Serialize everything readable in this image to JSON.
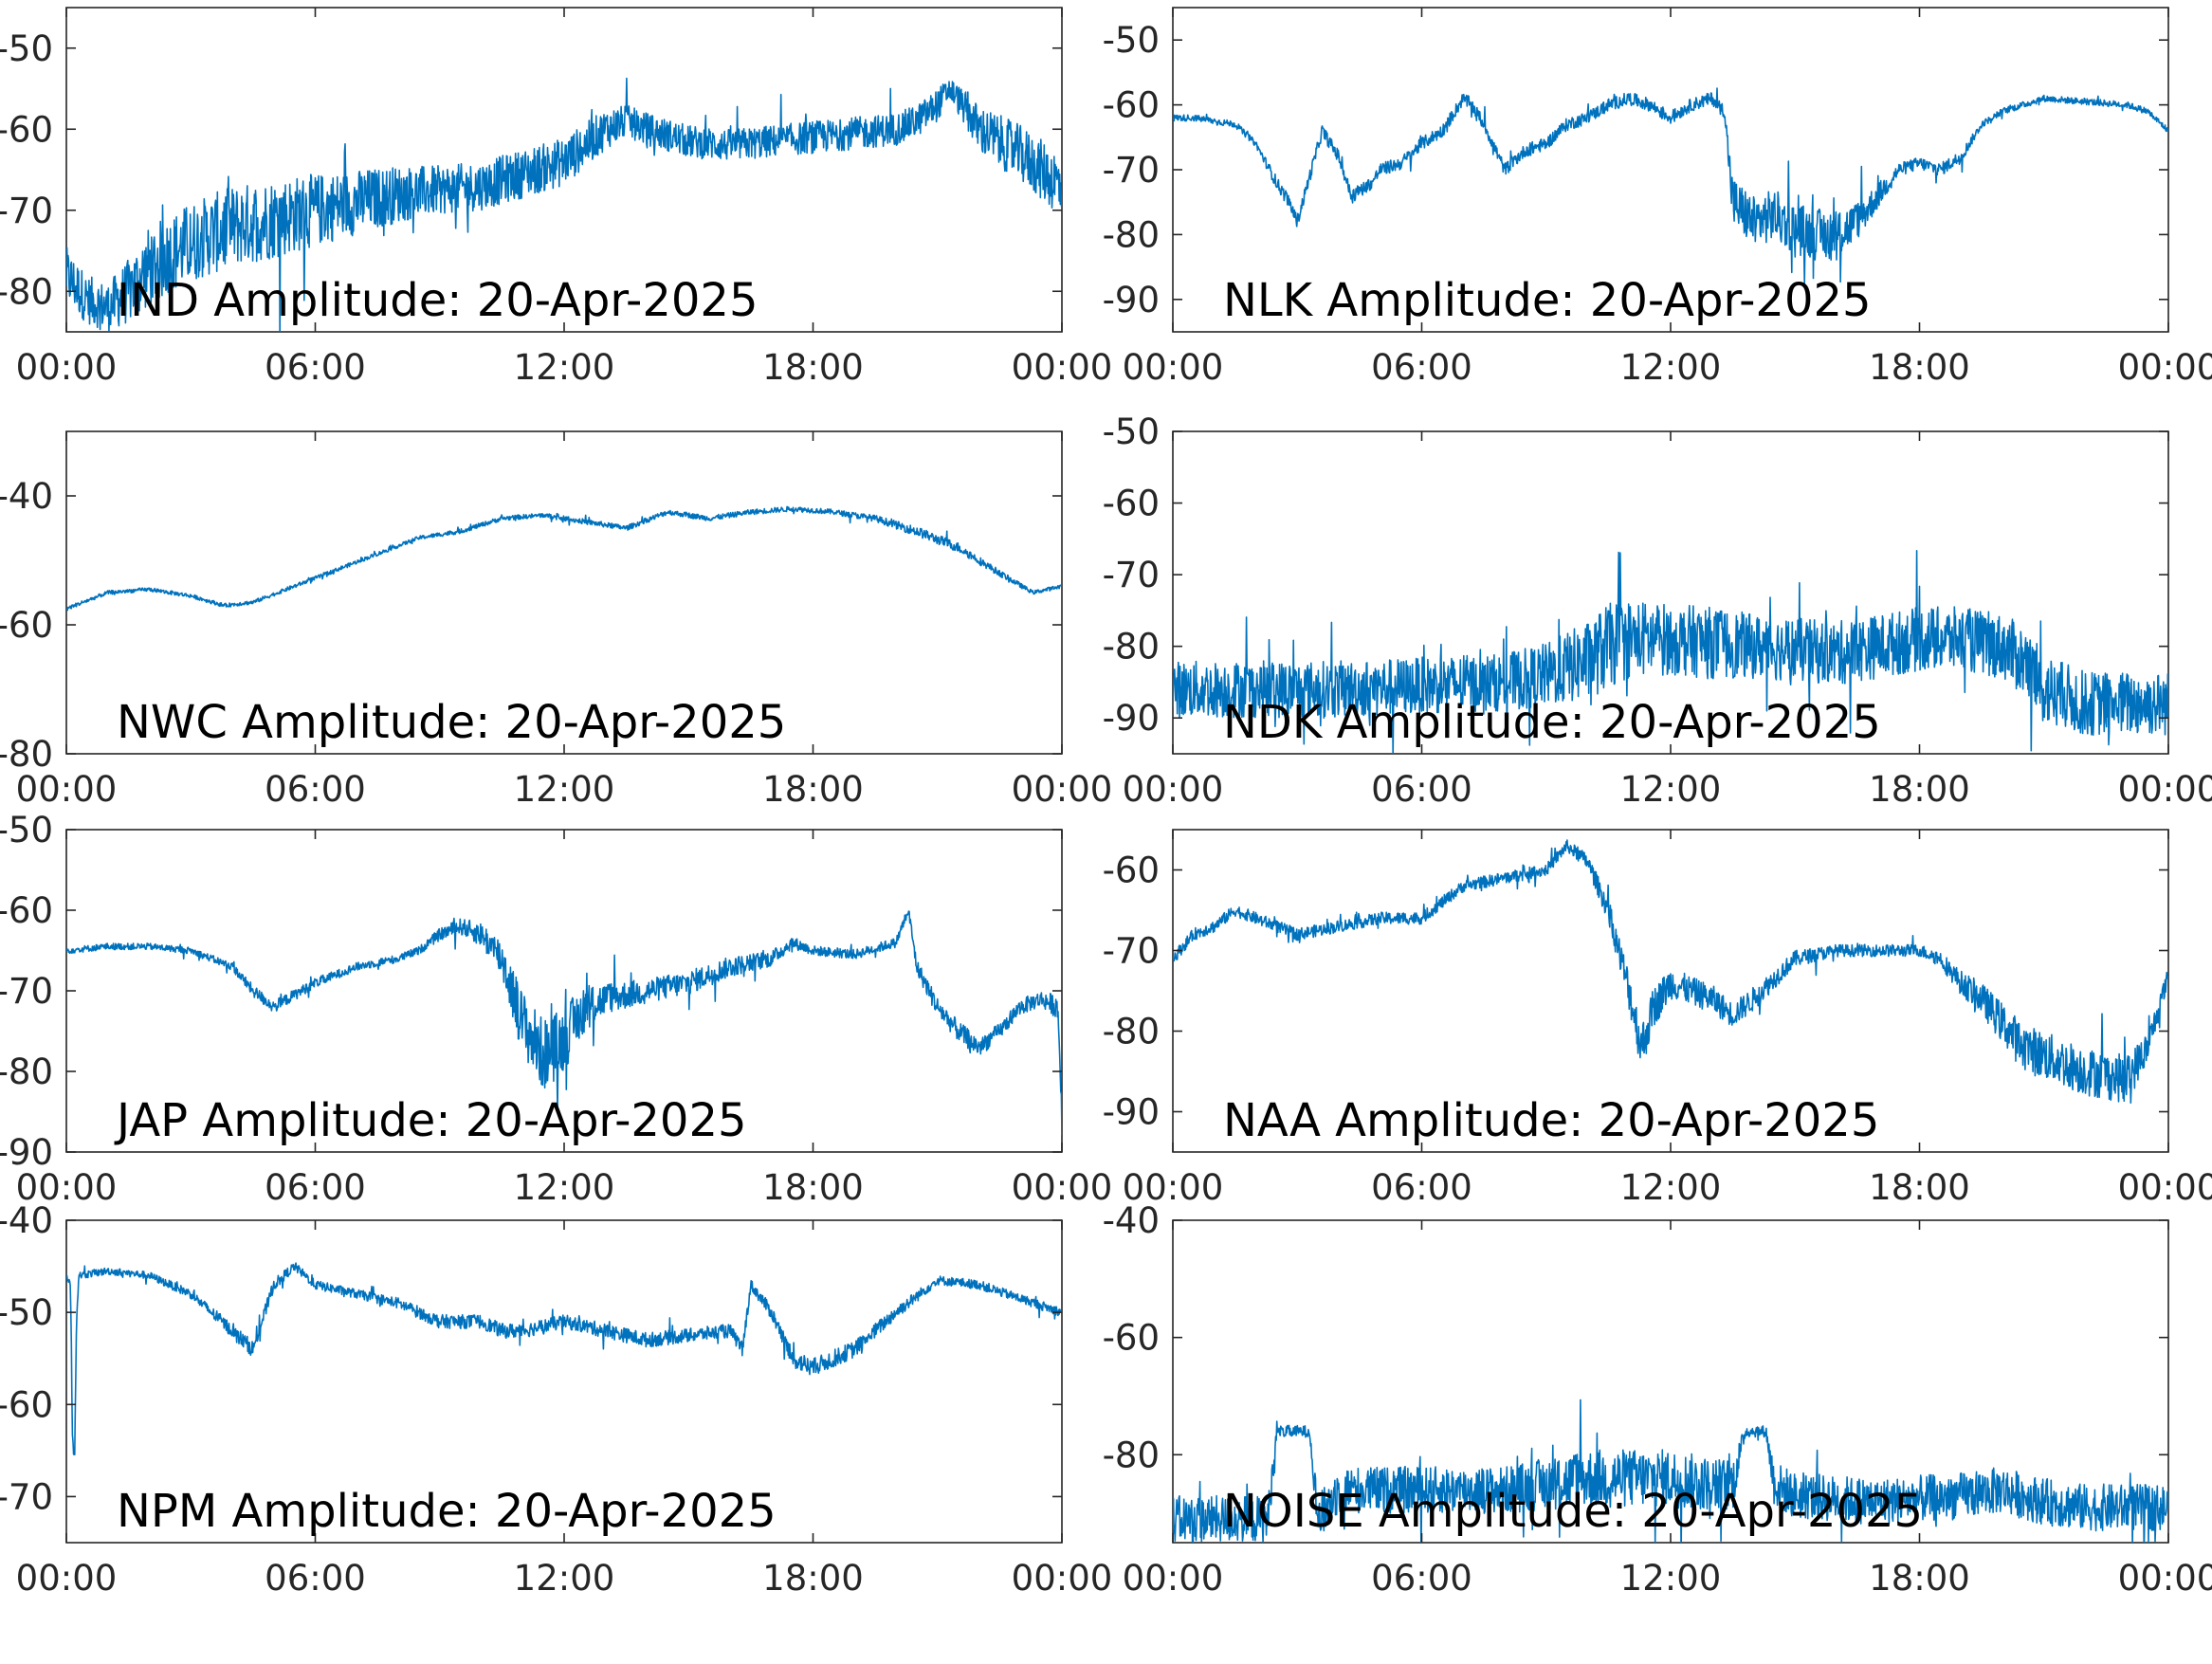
{
  "figure": {
    "colors": {
      "line": "#0072BD",
      "axis": "#262626",
      "label": "#000000",
      "background": "#ffffff"
    },
    "x_ticks": [
      "00:00",
      "06:00",
      "12:00",
      "18:00",
      "00:00"
    ],
    "x_range_hours": [
      0,
      24
    ]
  },
  "chart_data": [
    {
      "type": "line",
      "title": "IND Amplitude: 20-Apr-2025",
      "y_ticks": [
        "-50",
        "-60",
        "-70",
        "-80"
      ],
      "ylim": [
        -85,
        -45
      ],
      "series": [
        {
          "x": [
            0,
            0.5,
            1,
            1.5,
            2,
            3,
            4,
            5,
            6,
            7,
            8,
            9,
            10,
            11,
            12,
            13,
            13.5,
            14,
            15,
            16,
            17,
            18,
            19,
            20,
            20.5,
            21,
            21.3,
            21.6,
            22,
            23,
            24
          ],
          "values": [
            -78,
            -81,
            -82,
            -80,
            -77,
            -74,
            -72,
            -71,
            -70,
            -69,
            -68,
            -67.5,
            -67,
            -65.5,
            -64,
            -60,
            -59,
            -60,
            -61.5,
            -62,
            -61.5,
            -61,
            -60.5,
            -60,
            -59,
            -57,
            -55,
            -57,
            -60,
            -63,
            -67
          ],
          "noise": [
            7,
            6,
            6,
            8,
            10,
            10,
            10,
            10,
            9,
            8,
            7,
            6,
            6,
            6,
            6,
            5,
            4,
            4,
            4,
            4,
            4,
            4,
            4,
            4,
            4,
            4,
            3,
            4,
            6,
            7,
            8
          ]
        }
      ]
    },
    {
      "type": "line",
      "title": "NLK Amplitude: 20-Apr-2025",
      "y_ticks": [
        "-50",
        "-60",
        "-70",
        "-80",
        "-90"
      ],
      "ylim": [
        -95,
        -45
      ],
      "series": [
        {
          "x": [
            0,
            0.5,
            1,
            1.5,
            2,
            2.5,
            2.8,
            3,
            3.3,
            3.6,
            4,
            4.3,
            4.8,
            5,
            5.5,
            6,
            6.5,
            7,
            7.2,
            7.5,
            8,
            8.5,
            9,
            9.5,
            10,
            10.5,
            11,
            11.5,
            12,
            12.5,
            13,
            13.3,
            13.5,
            14,
            14.5,
            15,
            15.5,
            16,
            16.5,
            17,
            17.5,
            18,
            18.5,
            19,
            19.5,
            20,
            21,
            22,
            23,
            23.5,
            24
          ],
          "values": [
            -62,
            -62,
            -62.5,
            -63,
            -66,
            -72,
            -75,
            -78,
            -71,
            -64,
            -68,
            -74,
            -72,
            -70,
            -69,
            -66,
            -64,
            -59,
            -60,
            -63,
            -70,
            -67,
            -66,
            -63,
            -62,
            -60,
            -59,
            -60,
            -62,
            -60,
            -59,
            -61,
            -75,
            -78,
            -77,
            -79,
            -80,
            -80,
            -78,
            -74,
            -70,
            -69,
            -70,
            -68,
            -63,
            -61,
            -59,
            -59.5,
            -60,
            -61,
            -64
          ],
          "noise": [
            1,
            1,
            1,
            1,
            1,
            2,
            2,
            2,
            2,
            2,
            2,
            2,
            2,
            2,
            2,
            2,
            2,
            2,
            2,
            2,
            2,
            2,
            2,
            2,
            2,
            2,
            2,
            2,
            2,
            2,
            2,
            2,
            8,
            8,
            8,
            8,
            8,
            8,
            6,
            4,
            2,
            2,
            2,
            2,
            1,
            1,
            1,
            1,
            1,
            1,
            1
          ]
        }
      ]
    },
    {
      "type": "line",
      "title": "NWC Amplitude: 20-Apr-2025",
      "y_ticks": [
        "-40",
        "-60",
        "-80"
      ],
      "ylim": [
        -80,
        -30
      ],
      "series": [
        {
          "x": [
            0,
            1,
            2,
            3,
            3.8,
            4.5,
            5.5,
            6.5,
            7.5,
            8.5,
            9.5,
            10.5,
            11.5,
            12.5,
            13.5,
            14.5,
            15.5,
            16.5,
            17.5,
            18.5,
            19.5,
            20.5,
            21.5,
            22.5,
            23.3,
            24
          ],
          "values": [
            -57.5,
            -55,
            -54.5,
            -55.5,
            -57,
            -56.5,
            -54,
            -51.5,
            -49,
            -46.5,
            -45.5,
            -43.5,
            -43,
            -44,
            -45,
            -42.5,
            -43.5,
            -42.5,
            -42,
            -42.5,
            -43.5,
            -45.5,
            -48,
            -52,
            -55,
            -54
          ],
          "noise": [
            0.6,
            0.6,
            0.6,
            0.6,
            0.6,
            0.6,
            0.6,
            0.6,
            0.6,
            0.6,
            0.7,
            0.7,
            0.7,
            0.8,
            0.8,
            0.8,
            0.8,
            0.8,
            0.8,
            0.8,
            1,
            1.5,
            1.5,
            1,
            0.6,
            0.6
          ]
        }
      ]
    },
    {
      "type": "line",
      "title": "NDK Amplitude: 20-Apr-2025",
      "y_ticks": [
        "-50",
        "-60",
        "-70",
        "-80",
        "-90"
      ],
      "ylim": [
        -95,
        -50
      ],
      "series": [
        {
          "x": [
            0,
            2,
            4,
            6,
            8,
            9,
            10,
            10.5,
            11,
            12,
            13,
            14,
            15,
            16,
            17,
            18,
            19,
            20,
            20.5,
            21,
            22,
            23,
            24
          ],
          "values": [
            -86,
            -86,
            -86,
            -85.5,
            -85,
            -84,
            -82,
            -80,
            -79,
            -79,
            -79.5,
            -80,
            -80.5,
            -81,
            -80,
            -79,
            -79,
            -80,
            -82,
            -86,
            -88,
            -88,
            -88
          ],
          "noise": [
            8,
            8,
            8,
            8,
            8,
            9,
            11,
            12,
            11,
            10,
            10,
            9,
            9,
            9,
            9,
            9,
            9,
            9,
            10,
            10,
            9,
            9,
            9
          ]
        }
      ]
    },
    {
      "type": "line",
      "title": "JAP Amplitude: 20-Apr-2025",
      "y_ticks": [
        "-50",
        "-60",
        "-70",
        "-80",
        "-90"
      ],
      "ylim": [
        -90,
        -50
      ],
      "series": [
        {
          "x": [
            0,
            1,
            2,
            3,
            4,
            4.5,
            5,
            6,
            7,
            8,
            8.5,
            9,
            9.5,
            10,
            10.5,
            11,
            11.5,
            12,
            12.5,
            13,
            14,
            15,
            16,
            17,
            17.5,
            18,
            19,
            20,
            20.3,
            20.5,
            21,
            21.5,
            22,
            22.5,
            23,
            23.5,
            23.9,
            24
          ],
          "values": [
            -65,
            -64.5,
            -64.5,
            -65,
            -67,
            -70,
            -72,
            -69,
            -67,
            -66,
            -65,
            -63,
            -62,
            -63,
            -66,
            -74,
            -78,
            -76,
            -72,
            -71,
            -70,
            -69,
            -67,
            -66,
            -64,
            -65,
            -65.5,
            -64,
            -60,
            -67,
            -72,
            -75,
            -77,
            -75,
            -72,
            -71,
            -72,
            -85
          ],
          "noise": [
            0.8,
            0.8,
            0.8,
            0.8,
            1,
            1.5,
            1.5,
            1.2,
            1,
            1,
            1,
            1.5,
            2,
            3,
            5,
            8,
            9,
            8,
            6,
            4,
            3,
            3,
            2.5,
            2,
            1.5,
            1.2,
            1.2,
            1.2,
            1.5,
            2,
            2.5,
            2.5,
            2.5,
            2,
            2,
            2,
            3,
            6
          ]
        }
      ]
    },
    {
      "type": "line",
      "title": "NAA Amplitude: 20-Apr-2025",
      "y_ticks": [
        "-60",
        "-70",
        "-80",
        "-90"
      ],
      "ylim": [
        -95,
        -55
      ],
      "series": [
        {
          "x": [
            0,
            0.5,
            1,
            1.5,
            2,
            3,
            4,
            5,
            6,
            7,
            8,
            9,
            9.5,
            10,
            10.5,
            11,
            11.3,
            11.6,
            12,
            12.5,
            13,
            13.5,
            14,
            15,
            16,
            17,
            18,
            18.5,
            19,
            19.5,
            20,
            20.5,
            21,
            21.5,
            22,
            22.5,
            23,
            23.5,
            24
          ],
          "values": [
            -71,
            -68,
            -67,
            -65,
            -66,
            -68,
            -67,
            -66,
            -66,
            -62,
            -61,
            -60,
            -57,
            -59,
            -65,
            -75,
            -82,
            -77,
            -74,
            -75,
            -76,
            -78,
            -76,
            -71,
            -70,
            -70,
            -70,
            -71,
            -74,
            -76,
            -79,
            -82,
            -83,
            -84,
            -85,
            -85.5,
            -86,
            -82,
            -73
          ],
          "noise": [
            1.5,
            1.5,
            1.5,
            1.5,
            1.5,
            1.5,
            1.5,
            1.5,
            1.5,
            1.5,
            1.5,
            1.5,
            1.5,
            2,
            3,
            5,
            6,
            5,
            4,
            3.5,
            3.5,
            3,
            3,
            2,
            1.5,
            1.5,
            1.5,
            2,
            3,
            4,
            5,
            6,
            6,
            6,
            6,
            6,
            6,
            4,
            2
          ]
        }
      ]
    },
    {
      "type": "line",
      "title": "NPM Amplitude: 20-Apr-2025",
      "y_ticks": [
        "-40",
        "-50",
        "-60",
        "-70"
      ],
      "ylim": [
        -75,
        -40
      ],
      "series": [
        {
          "x": [
            0,
            0.1,
            0.15,
            0.2,
            0.25,
            0.3,
            1,
            2,
            3,
            4,
            4.5,
            5,
            5.5,
            6,
            7,
            8,
            9,
            10,
            10.5,
            11,
            12,
            13,
            14,
            15,
            16,
            16.3,
            16.5,
            17,
            17.5,
            18,
            19,
            20,
            21,
            22,
            23,
            24
          ],
          "values": [
            -46,
            -47,
            -64,
            -65,
            -50,
            -46,
            -45.5,
            -46,
            -48,
            -52,
            -54,
            -47,
            -45,
            -47,
            -48,
            -49,
            -51,
            -51,
            -52,
            -52,
            -51,
            -52,
            -53,
            -52.5,
            -52,
            -54,
            -47,
            -50,
            -55,
            -56,
            -54,
            -50,
            -46.5,
            -47,
            -48.5,
            -50
          ],
          "noise": [
            0.8,
            1,
            1.5,
            1.5,
            1,
            0.8,
            0.8,
            0.8,
            1,
            1.5,
            1.8,
            1.2,
            1,
            1,
            1,
            1.2,
            1.5,
            1.5,
            1.6,
            1.6,
            1.5,
            1.6,
            1.6,
            1.5,
            1.5,
            1.5,
            1.2,
            1.5,
            2,
            2,
            1.8,
            1.5,
            1,
            1,
            1,
            1
          ]
        }
      ]
    },
    {
      "type": "line",
      "title": "NOISE Amplitude: 20-Apr-2025",
      "y_ticks": [
        "-40",
        "-60",
        "-80"
      ],
      "ylim": [
        -95,
        -40
      ],
      "series": [
        {
          "x": [
            0,
            2,
            2.3,
            2.5,
            2.8,
            3,
            3.3,
            3.5,
            4,
            6,
            8,
            9,
            10,
            11,
            12,
            13,
            13.5,
            13.8,
            14,
            14.3,
            14.5,
            15,
            17,
            19,
            20,
            21,
            22,
            23,
            24
          ],
          "values": [
            -91,
            -91,
            -91,
            -76,
            -76,
            -76,
            -76,
            -91,
            -86,
            -86,
            -86,
            -85,
            -84,
            -84,
            -84,
            -85,
            -85,
            -76,
            -76,
            -76,
            -85,
            -87,
            -88,
            -87,
            -86,
            -88,
            -89,
            -89,
            -89
          ],
          "noise": [
            8,
            8,
            8,
            2,
            2,
            2,
            2,
            8,
            8,
            8,
            8,
            9,
            10,
            10,
            10,
            9,
            9,
            2,
            2,
            2,
            8,
            8,
            8,
            8,
            8,
            8,
            8,
            8,
            8
          ]
        }
      ]
    }
  ]
}
